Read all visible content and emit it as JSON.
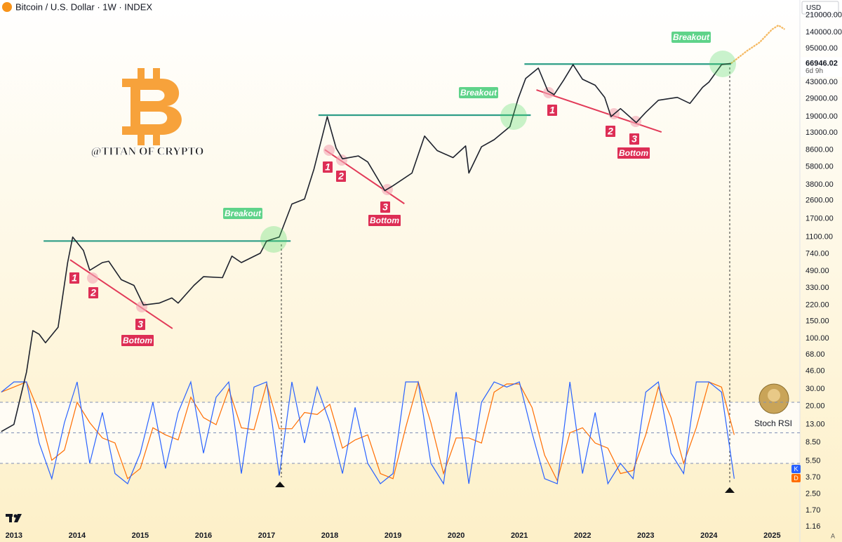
{
  "chart_data": [
    {
      "type": "line",
      "title": "Bitcoin / U.S. Dollar · 1W · INDEX",
      "currency": "USD",
      "scale_mode_button": "A",
      "log_scale": true,
      "watermark": "@TITAN OF CRYPTO",
      "xlim": [
        2012.78,
        2025.44
      ],
      "xticks": [
        2013,
        2014,
        2015,
        2016,
        2017,
        2018,
        2019,
        2020,
        2021,
        2022,
        2023,
        2024,
        2025
      ],
      "ylim": [
        0.805,
        300600
      ],
      "yticks": [
        {
          "value": 210000,
          "label": "210000.00"
        },
        {
          "value": 140000,
          "label": "140000.00"
        },
        {
          "value": 95000,
          "label": "95000.00"
        },
        {
          "value": 43000,
          "label": "43000.00"
        },
        {
          "value": 29000,
          "label": "29000.00"
        },
        {
          "value": 19000,
          "label": "19000.00"
        },
        {
          "value": 13000,
          "label": "13000.00"
        },
        {
          "value": 8600,
          "label": "8600.00"
        },
        {
          "value": 5800,
          "label": "5800.00"
        },
        {
          "value": 3800,
          "label": "3800.00"
        },
        {
          "value": 2600,
          "label": "2600.00"
        },
        {
          "value": 1700,
          "label": "1700.00"
        },
        {
          "value": 1100,
          "label": "1100.00"
        },
        {
          "value": 740,
          "label": "740.00"
        },
        {
          "value": 490,
          "label": "490.00"
        },
        {
          "value": 330,
          "label": "330.00"
        },
        {
          "value": 220,
          "label": "220.00"
        },
        {
          "value": 150,
          "label": "150.00"
        },
        {
          "value": 100,
          "label": "100.00"
        },
        {
          "value": 68,
          "label": "68.00"
        },
        {
          "value": 46,
          "label": "46.00"
        },
        {
          "value": 30,
          "label": "30.00"
        },
        {
          "value": 20,
          "label": "20.00"
        },
        {
          "value": 13,
          "label": "13.00"
        },
        {
          "value": 8.5,
          "label": "8.50"
        },
        {
          "value": 5.5,
          "label": "5.50"
        },
        {
          "value": 3.7,
          "label": "3.70"
        },
        {
          "value": 2.5,
          "label": "2.50"
        },
        {
          "value": 1.7,
          "label": "1.70"
        },
        {
          "value": 1.16,
          "label": "1.16"
        }
      ],
      "last_price": 66946.02,
      "countdown": "6d 9h",
      "x": [
        2012.8,
        2013.0,
        2013.2,
        2013.3,
        2013.4,
        2013.5,
        2013.7,
        2013.85,
        2013.93,
        2014.1,
        2014.2,
        2014.4,
        2014.5,
        2014.7,
        2014.9,
        2015.05,
        2015.3,
        2015.5,
        2015.6,
        2015.85,
        2016.0,
        2016.3,
        2016.45,
        2016.6,
        2016.9,
        2017.0,
        2017.2,
        2017.4,
        2017.6,
        2017.75,
        2017.96,
        2018.1,
        2018.2,
        2018.45,
        2018.6,
        2018.87,
        2019.0,
        2019.3,
        2019.5,
        2019.7,
        2019.95,
        2020.15,
        2020.2,
        2020.4,
        2020.6,
        2020.85,
        2020.98,
        2021.1,
        2021.3,
        2021.45,
        2021.55,
        2021.7,
        2021.85,
        2022.0,
        2022.2,
        2022.35,
        2022.45,
        2022.6,
        2022.85,
        2023.0,
        2023.2,
        2023.5,
        2023.7,
        2023.9,
        2024.0,
        2024.2,
        2024.35
      ],
      "series": [
        {
          "color": "#1e222d",
          "values": [
            11,
            13,
            45,
            120,
            110,
            90,
            130,
            600,
            1100,
            800,
            500,
            600,
            620,
            400,
            350,
            220,
            230,
            260,
            230,
            350,
            430,
            420,
            700,
            600,
            750,
            1000,
            1100,
            2400,
            2700,
            5500,
            19000,
            9000,
            7000,
            7500,
            6500,
            3300,
            3700,
            5000,
            12000,
            8500,
            7200,
            9500,
            5000,
            9300,
            11000,
            15000,
            29000,
            47000,
            60000,
            35000,
            32000,
            45000,
            65000,
            46000,
            40000,
            30000,
            19000,
            23000,
            16500,
            21000,
            28000,
            30000,
            26000,
            38000,
            43000,
            65000,
            67000
          ]
        },
        {
          "color": "#f5b85f",
          "x": [
            2024.35,
            2024.6,
            2024.8,
            2025.0,
            2025.1,
            2025.2
          ],
          "values": [
            67000,
            90000,
            110000,
            150000,
            165000,
            150000
          ]
        }
      ],
      "resistance": [
        {
          "x": [
            2013.47,
            2017.38
          ],
          "value": 1000
        },
        {
          "x": [
            2017.82,
            2021.18
          ],
          "value": 19700
        },
        {
          "x": [
            2021.08,
            2024.35
          ],
          "value": 66000
        }
      ],
      "breakouts": [
        "Breakout",
        "Breakout",
        "Breakout"
      ],
      "trendlines": [
        {
          "x": [
            2013.89,
            2015.51
          ],
          "values": [
            641,
            126
          ],
          "labels": [
            "1",
            "2",
            "3",
            "Bottom"
          ]
        },
        {
          "x": [
            2017.92,
            2019.18
          ],
          "values": [
            8700,
            2420
          ],
          "labels": [
            "1",
            "2",
            "3",
            "Bottom"
          ]
        },
        {
          "x": [
            2021.27,
            2023.25
          ],
          "values": [
            35800,
            13200
          ],
          "labels": [
            "1",
            "2",
            "3",
            "Bottom"
          ]
        }
      ]
    },
    {
      "type": "line",
      "title": "Stoch RSI",
      "ylim": [
        0,
        100
      ],
      "levels": [
        20,
        50,
        80
      ],
      "x": [
        2012.8,
        2013.0,
        2013.2,
        2013.4,
        2013.6,
        2013.8,
        2014.0,
        2014.2,
        2014.4,
        2014.6,
        2014.8,
        2015.0,
        2015.2,
        2015.4,
        2015.6,
        2015.8,
        2016.0,
        2016.2,
        2016.4,
        2016.6,
        2016.8,
        2017.0,
        2017.2,
        2017.4,
        2017.6,
        2017.8,
        2018.0,
        2018.2,
        2018.4,
        2018.6,
        2018.8,
        2019.0,
        2019.2,
        2019.4,
        2019.6,
        2019.8,
        2020.0,
        2020.2,
        2020.4,
        2020.6,
        2020.8,
        2021.0,
        2021.2,
        2021.4,
        2021.6,
        2021.8,
        2022.0,
        2022.2,
        2022.4,
        2022.6,
        2022.8,
        2023.0,
        2023.2,
        2023.4,
        2023.6,
        2023.8,
        2024.0,
        2024.2,
        2024.4
      ],
      "series": [
        {
          "name": "K",
          "color": "#2962ff",
          "values": [
            90,
            100,
            100,
            40,
            5,
            60,
            100,
            20,
            70,
            10,
            0,
            30,
            80,
            15,
            70,
            100,
            30,
            85,
            100,
            10,
            95,
            100,
            8,
            100,
            40,
            95,
            60,
            10,
            75,
            20,
            0,
            10,
            100,
            100,
            20,
            0,
            90,
            0,
            80,
            100,
            95,
            100,
            50,
            5,
            0,
            100,
            10,
            70,
            0,
            20,
            5,
            90,
            100,
            30,
            10,
            100,
            100,
            90,
            5
          ]
        },
        {
          "name": "D",
          "color": "#ff6d00",
          "values": [
            90,
            95,
            100,
            70,
            23,
            33,
            80,
            60,
            45,
            40,
            5,
            15,
            55,
            48,
            43,
            85,
            65,
            58,
            93,
            55,
            53,
            98,
            54,
            54,
            70,
            68,
            78,
            35,
            43,
            48,
            10,
            5,
            55,
            100,
            60,
            10,
            45,
            45,
            40,
            90,
            98,
            98,
            75,
            28,
            3,
            50,
            55,
            40,
            35,
            10,
            13,
            48,
            95,
            65,
            20,
            55,
            100,
            95,
            48
          ]
        }
      ]
    }
  ]
}
